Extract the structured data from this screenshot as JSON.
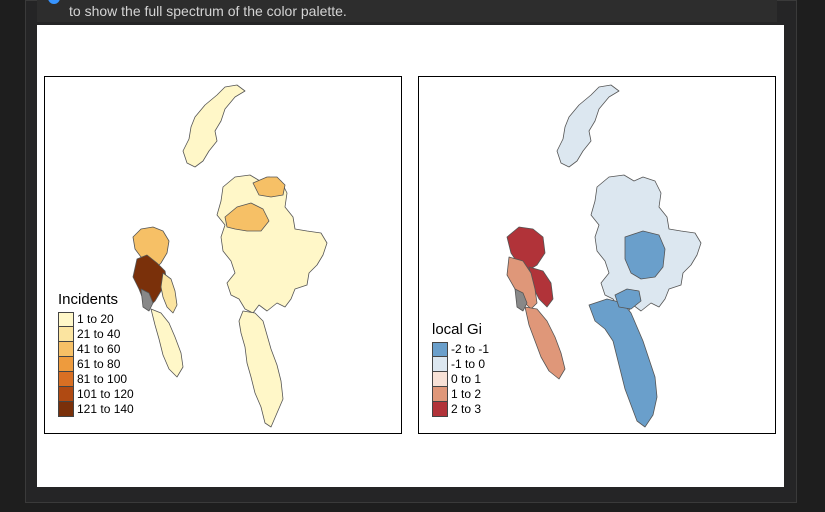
{
  "caption": {
    "text": "to show the full spectrum of the color palette."
  },
  "map_left": {
    "legend_title": "Incidents",
    "legend": [
      {
        "label": "1 to 20",
        "color": "#fff7c8"
      },
      {
        "label": "21 to 40",
        "color": "#fbe4a0"
      },
      {
        "label": "41 to 60",
        "color": "#f6c066"
      },
      {
        "label": "61 to 80",
        "color": "#ee9b3d"
      },
      {
        "label": "81 to 100",
        "color": "#d86f23"
      },
      {
        "label": "101 to 120",
        "color": "#b04a12"
      },
      {
        "label": "121 to 140",
        "color": "#7a300a"
      }
    ]
  },
  "map_right": {
    "legend_title": "local Gi",
    "legend": [
      {
        "label": "-2 to -1",
        "color": "#6a9fcb"
      },
      {
        "label": "-1 to 0",
        "color": "#dce7f0"
      },
      {
        "label": "0 to 1",
        "color": "#f7e1d6"
      },
      {
        "label": "1 to 2",
        "color": "#df9779"
      },
      {
        "label": "2 to 3",
        "color": "#b13339"
      }
    ]
  }
}
